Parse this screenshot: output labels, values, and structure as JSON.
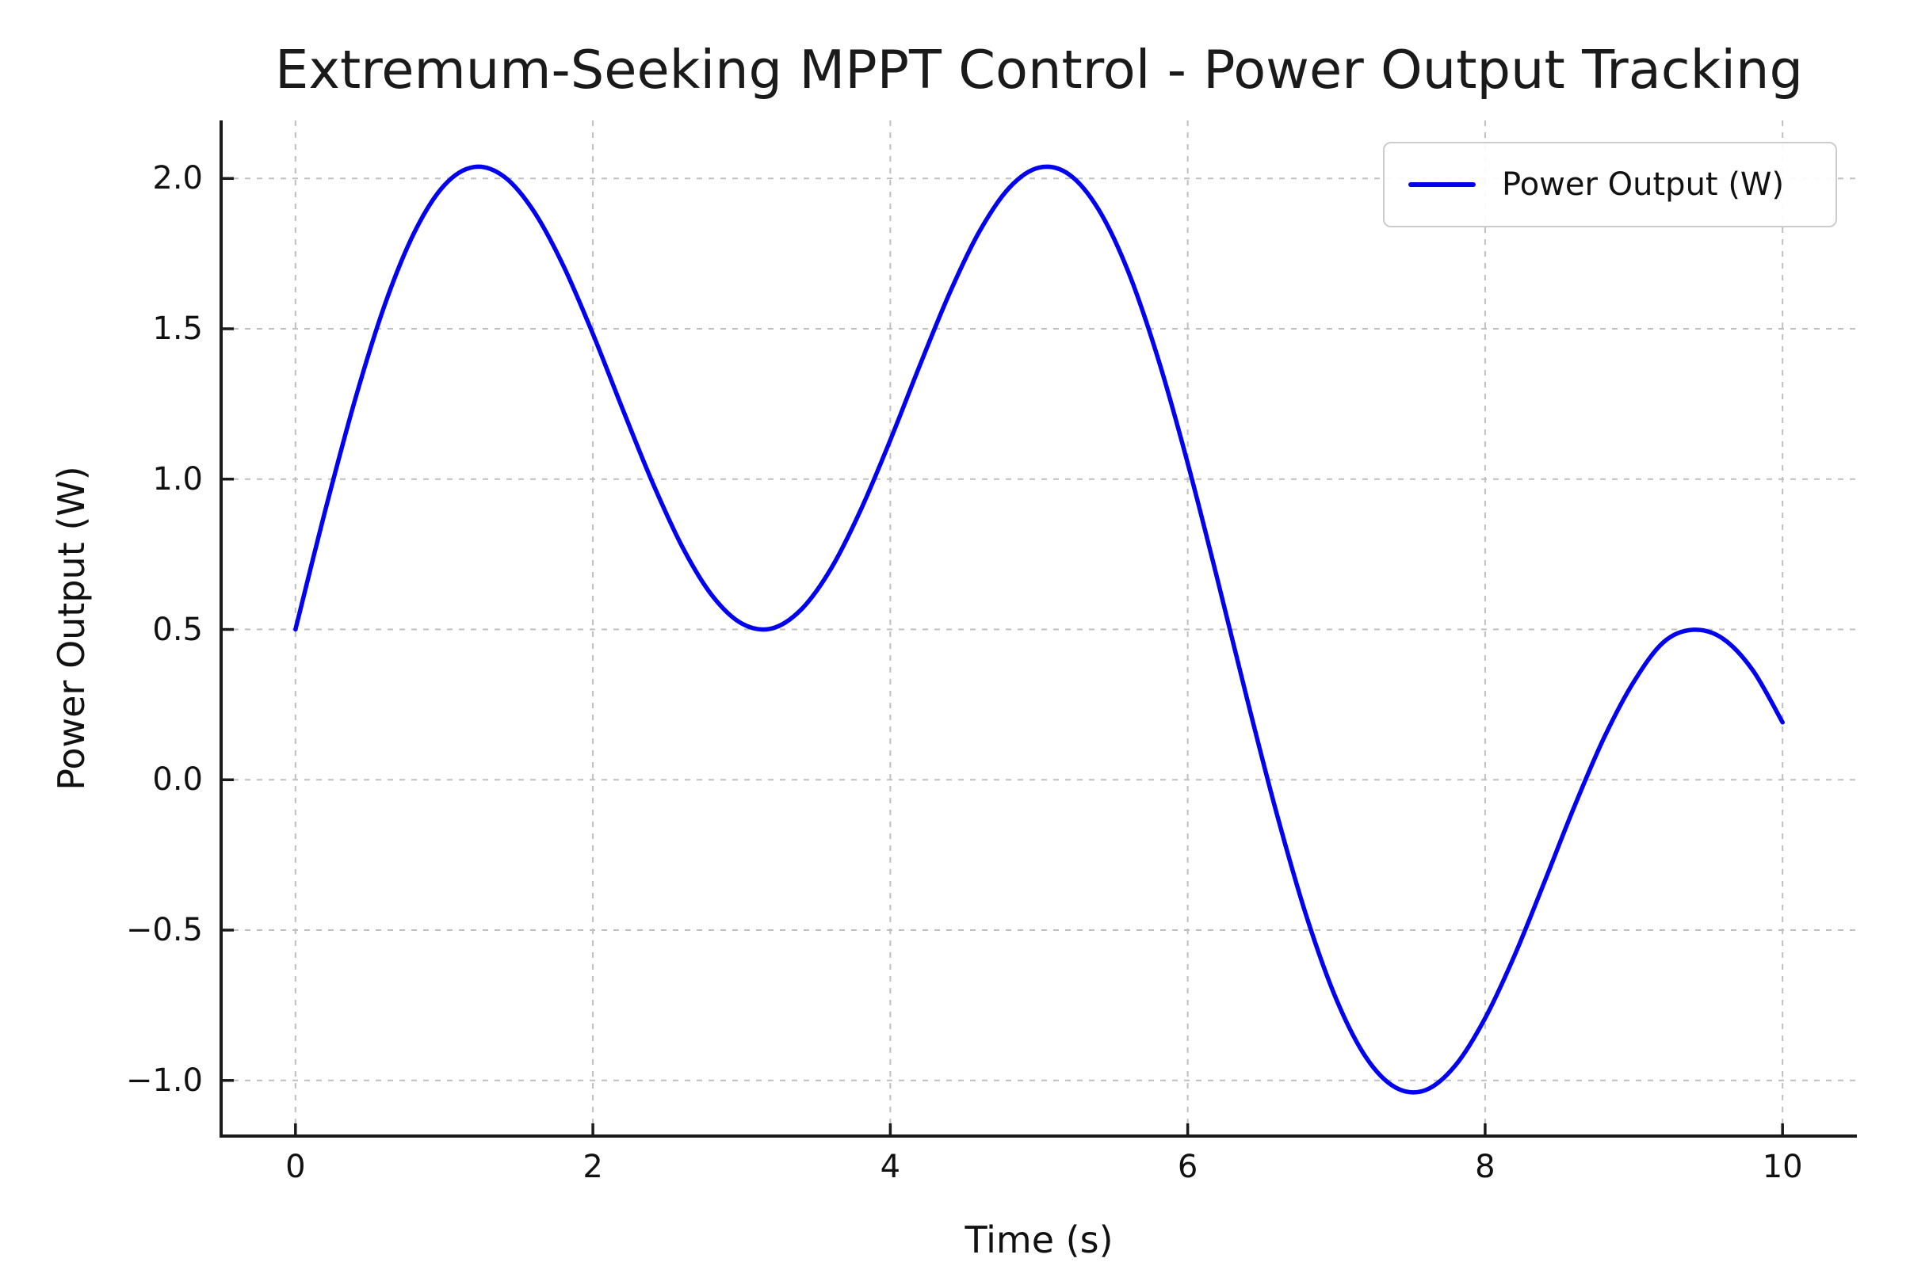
{
  "chart_data": {
    "type": "line",
    "title": "Extremum-Seeking MPPT Control - Power Output Tracking",
    "xlabel": "Time (s)",
    "ylabel": "Power Output (W)",
    "xlim": [
      -0.5,
      10.5
    ],
    "ylim": [
      -1.185,
      2.193
    ],
    "x_ticks": [
      0,
      2,
      4,
      6,
      8,
      10
    ],
    "x_tick_labels": [
      "0",
      "2",
      "4",
      "6",
      "8",
      "10"
    ],
    "y_ticks": [
      -1.0,
      -0.5,
      0.0,
      0.5,
      1.0,
      1.5,
      2.0
    ],
    "y_tick_labels": [
      "−1.0",
      "−0.5",
      "0.0",
      "0.5",
      "1.0",
      "1.5",
      "2.0"
    ],
    "grid": true,
    "grid_style": "dashed",
    "legend_position": "upper right",
    "colors": {
      "line": "#0202f0",
      "grid": "#bfbfbf",
      "axis": "#1a1a1a",
      "text": "#111111",
      "legend_border": "#cccccc",
      "background": "#ffffff"
    },
    "series": [
      {
        "name": "Power Output (W)",
        "color": "#0202f0",
        "x": [
          0,
          0.2,
          0.4,
          0.6,
          0.8,
          1,
          1.2,
          1.4,
          1.6,
          1.8,
          2,
          2.2,
          2.4,
          2.6,
          2.8,
          3,
          3.2,
          3.4,
          3.6,
          3.8,
          4,
          4.2,
          4.4,
          4.6,
          4.8,
          5,
          5.2,
          5.4,
          5.6,
          5.8,
          6,
          6.2,
          6.4,
          6.6,
          6.8,
          7,
          7.2,
          7.4,
          7.6,
          7.8,
          8,
          8.2,
          8.4,
          8.6,
          8.8,
          9,
          9.2,
          9.4,
          9.6,
          9.8,
          10
        ],
        "y": [
          0.5,
          0.895,
          1.263,
          1.579,
          1.821,
          1.977,
          2.038,
          2.007,
          1.893,
          1.711,
          1.483,
          1.233,
          0.99,
          0.776,
          0.614,
          0.52,
          0.503,
          0.566,
          0.701,
          0.896,
          1.13,
          1.38,
          1.62,
          1.824,
          1.969,
          2.036,
          2.014,
          1.897,
          1.69,
          1.402,
          1.053,
          0.666,
          0.267,
          -0.115,
          -0.456,
          -0.731,
          -0.924,
          -1.024,
          -1.032,
          -0.95,
          -0.793,
          -0.582,
          -0.338,
          -0.089,
          0.14,
          0.326,
          0.458,
          0.499,
          0.469,
          0.364,
          0.191
        ]
      }
    ]
  }
}
